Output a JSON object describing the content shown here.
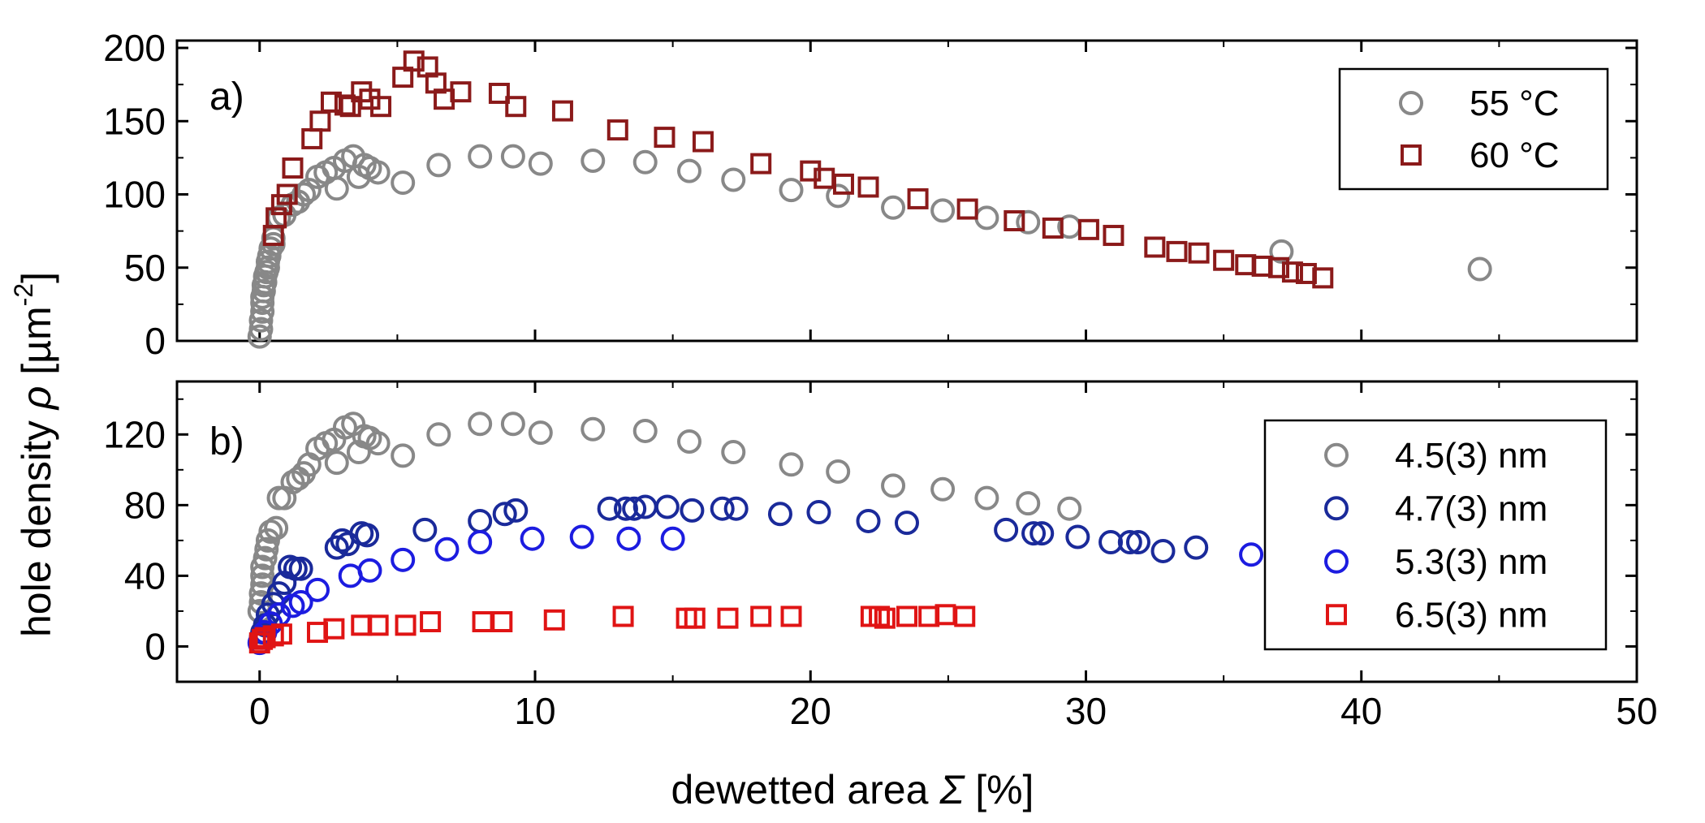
{
  "chart_data": [
    {
      "type": "scatter",
      "panel_label": "a)",
      "xlim": [
        -3,
        50
      ],
      "ylim": [
        0,
        205
      ],
      "x_ticks": [
        0,
        10,
        20,
        30,
        40,
        50
      ],
      "y_ticks": [
        0,
        50,
        100,
        150,
        200
      ],
      "ylabel_parts": {
        "text": "hole density ",
        "symbol": "ρ",
        "unit": " [µm",
        "exp": "-2",
        "close": "]"
      },
      "legend_position": "top-right",
      "series": [
        {
          "name": "55 °C",
          "marker": "circle",
          "color": "#888888",
          "points": [
            [
              0.0,
              3
            ],
            [
              0.05,
              8
            ],
            [
              0.05,
              14
            ],
            [
              0.1,
              20
            ],
            [
              0.1,
              26
            ],
            [
              0.1,
              30
            ],
            [
              0.15,
              34
            ],
            [
              0.15,
              38
            ],
            [
              0.2,
              40
            ],
            [
              0.2,
              44
            ],
            [
              0.25,
              47
            ],
            [
              0.3,
              50
            ],
            [
              0.3,
              54
            ],
            [
              0.35,
              58
            ],
            [
              0.4,
              63
            ],
            [
              0.5,
              66
            ],
            [
              0.5,
              70
            ],
            [
              0.7,
              84
            ],
            [
              0.9,
              86
            ],
            [
              1.2,
              93
            ],
            [
              1.4,
              95
            ],
            [
              1.6,
              100
            ],
            [
              1.8,
              103
            ],
            [
              2.1,
              112
            ],
            [
              2.4,
              115
            ],
            [
              2.7,
              118
            ],
            [
              2.8,
              104
            ],
            [
              3.1,
              123
            ],
            [
              3.4,
              126
            ],
            [
              3.6,
              112
            ],
            [
              3.8,
              120
            ],
            [
              4.0,
              118
            ],
            [
              4.3,
              115
            ],
            [
              5.2,
              108
            ],
            [
              6.5,
              120
            ],
            [
              8.0,
              126
            ],
            [
              9.2,
              126
            ],
            [
              10.2,
              121
            ],
            [
              12.1,
              123
            ],
            [
              14.0,
              122
            ],
            [
              15.6,
              116
            ],
            [
              17.2,
              110
            ],
            [
              19.3,
              103
            ],
            [
              21.0,
              99
            ],
            [
              23.0,
              91
            ],
            [
              24.8,
              89
            ],
            [
              26.4,
              84
            ],
            [
              27.9,
              81
            ],
            [
              29.4,
              78
            ],
            [
              37.1,
              61
            ],
            [
              44.3,
              49
            ]
          ]
        },
        {
          "name": "60 °C",
          "marker": "square",
          "color": "#8B1A1A",
          "points": [
            [
              0.5,
              72
            ],
            [
              0.6,
              84
            ],
            [
              0.8,
              93
            ],
            [
              1.0,
              100
            ],
            [
              1.2,
              118
            ],
            [
              1.9,
              138
            ],
            [
              2.2,
              150
            ],
            [
              2.6,
              163
            ],
            [
              3.1,
              161
            ],
            [
              3.3,
              160
            ],
            [
              3.7,
              170
            ],
            [
              4.0,
              165
            ],
            [
              4.4,
              160
            ],
            [
              5.2,
              180
            ],
            [
              5.6,
              191
            ],
            [
              6.1,
              187
            ],
            [
              6.4,
              176
            ],
            [
              6.7,
              165
            ],
            [
              7.3,
              170
            ],
            [
              8.7,
              169
            ],
            [
              9.3,
              160
            ],
            [
              11.0,
              157
            ],
            [
              13.0,
              144
            ],
            [
              14.7,
              139
            ],
            [
              16.1,
              136
            ],
            [
              18.2,
              121
            ],
            [
              20.0,
              116
            ],
            [
              20.5,
              111
            ],
            [
              21.2,
              107
            ],
            [
              22.1,
              105
            ],
            [
              23.9,
              97
            ],
            [
              25.7,
              90
            ],
            [
              27.4,
              82
            ],
            [
              28.8,
              77
            ],
            [
              30.1,
              76
            ],
            [
              31.0,
              72
            ],
            [
              32.5,
              64
            ],
            [
              33.3,
              61
            ],
            [
              34.1,
              60
            ],
            [
              35.0,
              55
            ],
            [
              35.8,
              52
            ],
            [
              36.4,
              51
            ],
            [
              37.0,
              50
            ],
            [
              37.5,
              47
            ],
            [
              38.0,
              46
            ],
            [
              38.6,
              43
            ]
          ]
        }
      ]
    },
    {
      "type": "scatter",
      "panel_label": "b)",
      "xlim": [
        -3,
        50
      ],
      "ylim": [
        -20,
        150
      ],
      "x_ticks": [
        0,
        10,
        20,
        30,
        40,
        50
      ],
      "y_ticks": [
        0,
        40,
        80,
        120
      ],
      "xlabel_parts": {
        "text": "dewetted area ",
        "symbol": "Σ",
        "unit": " [%]"
      },
      "legend_position": "top-right",
      "series": [
        {
          "name": "4.5(3) nm",
          "marker": "circle",
          "color": "#888888",
          "points": [
            [
              0.0,
              20
            ],
            [
              0.05,
              25
            ],
            [
              0.05,
              30
            ],
            [
              0.1,
              35
            ],
            [
              0.1,
              40
            ],
            [
              0.1,
              45
            ],
            [
              0.2,
              50
            ],
            [
              0.25,
              55
            ],
            [
              0.3,
              60
            ],
            [
              0.4,
              65
            ],
            [
              0.6,
              67
            ],
            [
              0.7,
              84
            ],
            [
              0.9,
              84
            ],
            [
              1.2,
              93
            ],
            [
              1.4,
              95
            ],
            [
              1.6,
              98
            ],
            [
              1.8,
              103
            ],
            [
              2.1,
              112
            ],
            [
              2.4,
              115
            ],
            [
              2.7,
              117
            ],
            [
              2.8,
              104
            ],
            [
              3.1,
              124
            ],
            [
              3.4,
              126
            ],
            [
              3.6,
              110
            ],
            [
              3.8,
              119
            ],
            [
              4.0,
              118
            ],
            [
              4.3,
              115
            ],
            [
              5.2,
              108
            ],
            [
              6.5,
              120
            ],
            [
              8.0,
              126
            ],
            [
              9.2,
              126
            ],
            [
              10.2,
              121
            ],
            [
              12.1,
              123
            ],
            [
              14.0,
              122
            ],
            [
              15.6,
              116
            ],
            [
              17.2,
              110
            ],
            [
              19.3,
              103
            ],
            [
              21.0,
              99
            ],
            [
              23.0,
              91
            ],
            [
              24.8,
              89
            ],
            [
              26.4,
              84
            ],
            [
              27.9,
              81
            ],
            [
              29.4,
              78
            ]
          ]
        },
        {
          "name": "4.7(3) nm",
          "marker": "circle",
          "color": "#1A2A9A",
          "points": [
            [
              0.05,
              5
            ],
            [
              0.1,
              8
            ],
            [
              0.2,
              12
            ],
            [
              0.3,
              18
            ],
            [
              0.5,
              24
            ],
            [
              0.7,
              30
            ],
            [
              0.9,
              36
            ],
            [
              1.1,
              45
            ],
            [
              1.3,
              44
            ],
            [
              1.5,
              44
            ],
            [
              2.8,
              56
            ],
            [
              3.0,
              60
            ],
            [
              3.2,
              58
            ],
            [
              3.7,
              64
            ],
            [
              3.9,
              63
            ],
            [
              6.0,
              66
            ],
            [
              8.0,
              71
            ],
            [
              8.9,
              75
            ],
            [
              9.3,
              77
            ],
            [
              12.7,
              78
            ],
            [
              13.3,
              78
            ],
            [
              13.6,
              78
            ],
            [
              14.0,
              79
            ],
            [
              14.8,
              79
            ],
            [
              15.7,
              77
            ],
            [
              16.8,
              78
            ],
            [
              17.3,
              78
            ],
            [
              18.9,
              75
            ],
            [
              20.3,
              76
            ],
            [
              22.1,
              71
            ],
            [
              23.5,
              70
            ],
            [
              27.1,
              66
            ],
            [
              28.1,
              64
            ],
            [
              28.4,
              64
            ],
            [
              29.7,
              62
            ],
            [
              30.9,
              59
            ],
            [
              31.6,
              59
            ],
            [
              31.9,
              59
            ],
            [
              32.8,
              54
            ],
            [
              34.0,
              56
            ]
          ]
        },
        {
          "name": "5.3(3) nm",
          "marker": "circle",
          "color": "#1C1CE0",
          "points": [
            [
              0.0,
              2
            ],
            [
              0.1,
              5
            ],
            [
              0.2,
              8
            ],
            [
              0.4,
              13
            ],
            [
              0.7,
              18
            ],
            [
              1.2,
              23
            ],
            [
              1.5,
              25
            ],
            [
              2.1,
              32
            ],
            [
              3.3,
              40
            ],
            [
              4.0,
              43
            ],
            [
              5.2,
              49
            ],
            [
              6.8,
              55
            ],
            [
              8.0,
              59
            ],
            [
              9.9,
              61
            ],
            [
              11.7,
              62
            ],
            [
              13.4,
              61
            ],
            [
              15.0,
              61
            ],
            [
              36.0,
              52
            ]
          ]
        },
        {
          "name": "6.5(3) nm",
          "marker": "square",
          "color": "#E01414",
          "points": [
            [
              0.0,
              2
            ],
            [
              0.1,
              4
            ],
            [
              0.2,
              5
            ],
            [
              0.5,
              6
            ],
            [
              0.8,
              7
            ],
            [
              2.1,
              8
            ],
            [
              2.7,
              10
            ],
            [
              3.7,
              12
            ],
            [
              4.3,
              12
            ],
            [
              5.3,
              12
            ],
            [
              6.2,
              14
            ],
            [
              8.1,
              14
            ],
            [
              8.8,
              14
            ],
            [
              10.7,
              15
            ],
            [
              13.2,
              17
            ],
            [
              15.5,
              16
            ],
            [
              15.8,
              16
            ],
            [
              17.0,
              16
            ],
            [
              18.2,
              17
            ],
            [
              19.3,
              17
            ],
            [
              22.2,
              17
            ],
            [
              22.5,
              17
            ],
            [
              22.7,
              16
            ],
            [
              23.5,
              17
            ],
            [
              24.3,
              17
            ],
            [
              24.9,
              18
            ],
            [
              25.6,
              17
            ]
          ]
        }
      ]
    }
  ]
}
